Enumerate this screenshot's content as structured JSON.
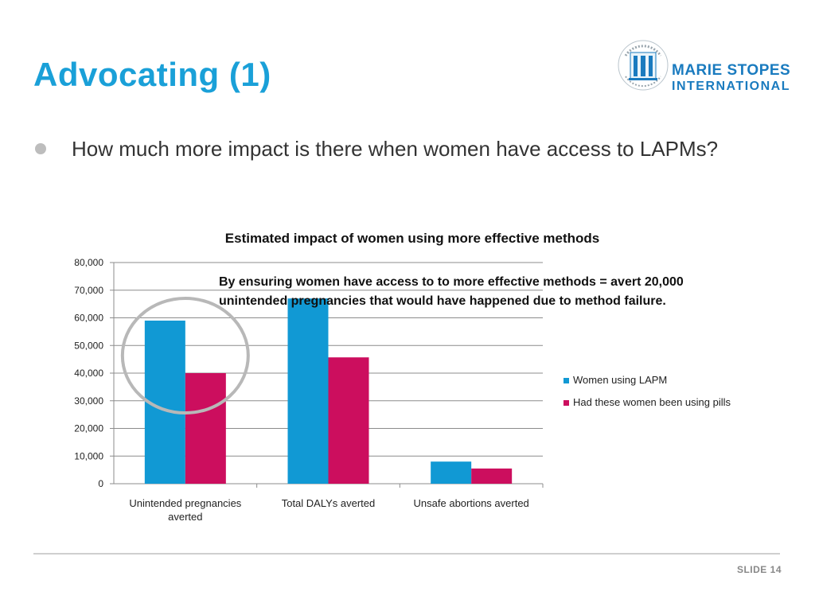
{
  "slide": {
    "title": "Advocating (1)",
    "bullet": "How much more impact is there when women have access to LAPMs?",
    "annotation": "By ensuring women have access to to more effective methods = avert 20,000 unintended pregnancies that would have happened due to method failure.",
    "slide_number": "SLIDE 14"
  },
  "logo": {
    "name": "MARIE STOPES",
    "sub": "INTERNATIONAL",
    "seal_text": "PROVIDING CHOICES IN REPRODUCTIVE HEALTHCARE"
  },
  "colors": {
    "title": "#1aa0d8",
    "series1": "#1199d4",
    "series2": "#cc0e5e",
    "highlight_circle": "#b8b8b8"
  },
  "chart_data": {
    "type": "bar",
    "title": "Estimated impact of women using more effective methods",
    "categories": [
      [
        "Unintended pregnancies",
        "averted"
      ],
      [
        "Total DALYs averted"
      ],
      [
        "Unsafe abortions averted"
      ]
    ],
    "series": [
      {
        "name": "Women using LAPM",
        "color": "#1199d4",
        "values": [
          59000,
          67000,
          8000
        ]
      },
      {
        "name": "Had these women been using pills",
        "color": "#cc0e5e",
        "values": [
          40000,
          45700,
          5500
        ]
      }
    ],
    "ylim": [
      0,
      80000
    ],
    "yticks": [
      "0",
      "10,000",
      "20,000",
      "30,000",
      "40,000",
      "50,000",
      "60,000",
      "70,000",
      "80,000"
    ],
    "grid": true,
    "legend": "right",
    "highlighted_category": 0
  }
}
